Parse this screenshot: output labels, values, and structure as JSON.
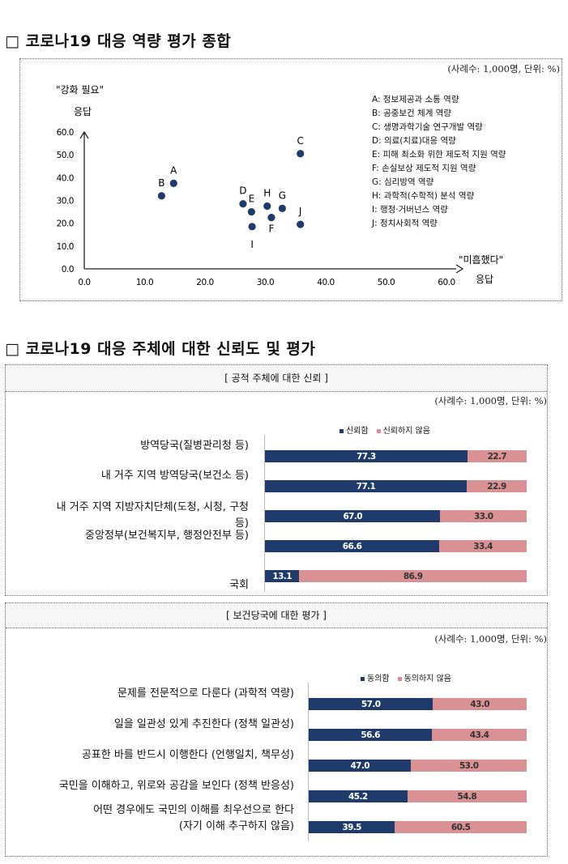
{
  "section1_title": "□ 코로나19 대응 역량 평가 종합",
  "section2_title": "□ 코로나19 대응 주체에 대한 신뢰도 및 평가",
  "chart_data": [
    {
      "type": "scatter",
      "unit_note": "(사례수: 1,000명, 단위: %)",
      "ylabel_line1": "\"강화 필요\"",
      "ylabel_line2": "응답",
      "xlabel_line1": "\"미흡했다\"",
      "xlabel_line2": "응답",
      "xlim": [
        0,
        60
      ],
      "ylim": [
        0,
        60
      ],
      "xticks": [
        "0.0",
        "10.0",
        "20.0",
        "30.0",
        "40.0",
        "50.0",
        "60.0"
      ],
      "yticks": [
        "0.0",
        "10.0",
        "20.0",
        "30.0",
        "40.0",
        "50.0",
        "60.0"
      ],
      "points": [
        {
          "label": "A",
          "x": 14.8,
          "y": 37.5
        },
        {
          "label": "B",
          "x": 12.8,
          "y": 32.0
        },
        {
          "label": "C",
          "x": 35.8,
          "y": 50.5
        },
        {
          "label": "D",
          "x": 26.3,
          "y": 28.5
        },
        {
          "label": "E",
          "x": 27.7,
          "y": 25.0
        },
        {
          "label": "F",
          "x": 31.0,
          "y": 22.5
        },
        {
          "label": "G",
          "x": 32.8,
          "y": 26.5
        },
        {
          "label": "H",
          "x": 30.3,
          "y": 27.5
        },
        {
          "label": "I",
          "x": 27.8,
          "y": 18.5
        },
        {
          "label": "J",
          "x": 35.8,
          "y": 19.5
        }
      ],
      "legend": [
        "A: 정보제공과 소통 역량",
        "B: 공중보건 체계 역량",
        "C: 생명과학기술 연구개발 역량",
        "D: 의료(치료)대응 역량",
        "E: 피해 최소화 위한 제도적 지원 역량",
        "F: 손실보상 제도적 지원 역량",
        "G: 심리방역 역량",
        "H: 과학적(수학적) 분석 역량",
        "I: 행정·거버넌스 역량",
        "J: 정치사회적 역량"
      ]
    },
    {
      "type": "bar",
      "stacked": true,
      "orientation": "horizontal",
      "title": "[ 공적 주체에 대한 신뢰 ]",
      "unit_note": "(사례수: 1,000명, 단위: %)",
      "series_names": [
        "신뢰함",
        "신뢰하지 않음"
      ],
      "colors": [
        "#1f3b6b",
        "#d99193"
      ],
      "categories": [
        [
          "방역당국(질병관리청 등)"
        ],
        [
          "내 거주 지역 방역당국(보건소 등)"
        ],
        [
          "내 거주 지역 지방자치단체(도청, 시청, 구청",
          "등)"
        ],
        [
          "중앙정부(보건복지부, 행정안전부 등)"
        ],
        [
          "국회"
        ]
      ],
      "series": [
        {
          "name": "신뢰함",
          "values": [
            77.3,
            77.1,
            67.0,
            66.6,
            13.1
          ],
          "labels": [
            "77.3",
            "77.1",
            "67.0",
            "66.6",
            "13.1"
          ]
        },
        {
          "name": "신뢰하지 않음",
          "values": [
            22.7,
            22.9,
            33.0,
            33.4,
            86.9
          ],
          "labels": [
            "22.7",
            "22.9",
            "33.0",
            "33.4",
            "86.9"
          ]
        }
      ]
    },
    {
      "type": "bar",
      "stacked": true,
      "orientation": "horizontal",
      "title": "[ 보건당국에 대한 평가 ]",
      "unit_note": "(사례수: 1,000명, 단위: %)",
      "series_names": [
        "동의함",
        "동의하지 않음"
      ],
      "colors": [
        "#1f3b6b",
        "#d99193"
      ],
      "categories": [
        [
          "문제를 전문적으로 다룬다 (과학적 역량)"
        ],
        [
          "일을 일관성 있게 추진한다 (정책 일관성)"
        ],
        [
          "공표한 바를 반드시 이행한다 (언행일치, 책무성)"
        ],
        [
          "국민을 이해하고, 위로와 공감을 보인다 (정책 반응성)"
        ],
        [
          "어떤 경우에도 국민의 이해를 최우선으로 한다",
          "(자기 이해 추구하지 않음)"
        ]
      ],
      "series": [
        {
          "name": "동의함",
          "values": [
            57.0,
            56.6,
            47.0,
            45.2,
            39.5
          ],
          "labels": [
            "57.0",
            "56.6",
            "47.0",
            "45.2",
            "39.5"
          ]
        },
        {
          "name": "동의하지 않음",
          "values": [
            43.0,
            43.4,
            53.0,
            54.8,
            60.5
          ],
          "labels": [
            "43.0",
            "43.4",
            "53.0",
            "54.8",
            "60.5"
          ]
        }
      ]
    }
  ]
}
